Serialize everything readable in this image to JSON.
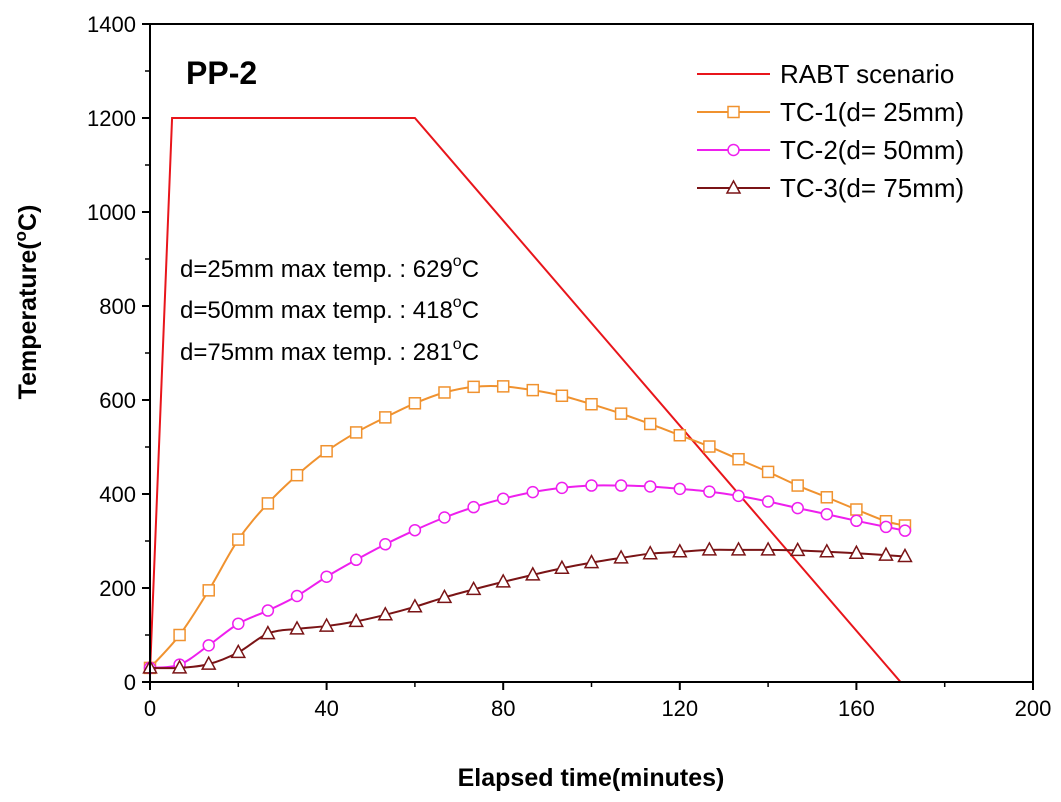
{
  "chart_data": {
    "type": "line",
    "panel_label": "PP-2",
    "xlabel": "Elapsed time(minutes)",
    "ylabel_main": "Temperature(",
    "ylabel_sup": "o",
    "ylabel_end": "C)",
    "xlim": [
      0,
      200
    ],
    "ylim": [
      0,
      1400
    ],
    "xticks": [
      0,
      40,
      80,
      120,
      160,
      200
    ],
    "yticks": [
      0,
      200,
      400,
      600,
      800,
      1000,
      1200,
      1400
    ],
    "grid": false,
    "legend_position": "top-right",
    "annotations": [
      {
        "main": "d=25mm max temp. : 629",
        "sup": "o",
        "end": "C"
      },
      {
        "main": "d=50mm max temp. : 418",
        "sup": "o",
        "end": "C"
      },
      {
        "main": "d=75mm max temp. : 281",
        "sup": "o",
        "end": "C"
      }
    ],
    "series": [
      {
        "name": "RABT scenario",
        "color": "#e8151b",
        "marker": "none",
        "x": [
          0,
          5,
          60,
          170
        ],
        "y": [
          20,
          1200,
          1200,
          0
        ]
      },
      {
        "name": "TC-1(d= 25mm)",
        "color": "#f0922f",
        "marker": "square",
        "x": [
          0,
          6.7,
          13.3,
          20,
          26.7,
          33.3,
          40,
          46.7,
          53.3,
          60,
          66.7,
          73.3,
          80,
          86.7,
          93.3,
          100,
          106.7,
          113.3,
          120,
          126.7,
          133.3,
          140,
          146.7,
          153.3,
          160,
          166.7,
          171
        ],
        "y": [
          30,
          100,
          195,
          303,
          380,
          440,
          491,
          531,
          563,
          593,
          616,
          628,
          629,
          621,
          609,
          591,
          571,
          549,
          525,
          501,
          474,
          447,
          418,
          393,
          367,
          342,
          333
        ]
      },
      {
        "name": "TC-2(d= 50mm)",
        "color": "#ee1fee",
        "marker": "circle",
        "x": [
          0,
          6.7,
          13.3,
          20,
          26.7,
          33.3,
          40,
          46.7,
          53.3,
          60,
          66.7,
          73.3,
          80,
          86.7,
          93.3,
          100,
          106.7,
          113.3,
          120,
          126.7,
          133.3,
          140,
          146.7,
          153.3,
          160,
          166.7,
          171
        ],
        "y": [
          30,
          37,
          78,
          124,
          152,
          183,
          224,
          260,
          293,
          323,
          350,
          372,
          390,
          404,
          413,
          418,
          418,
          416,
          411,
          405,
          396,
          384,
          370,
          357,
          343,
          330,
          322
        ]
      },
      {
        "name": "TC-3(d= 75mm)",
        "color": "#7a1416",
        "marker": "triangle",
        "x": [
          0,
          6.7,
          13.3,
          20,
          26.7,
          33.3,
          40,
          46.7,
          53.3,
          60,
          66.7,
          73.3,
          80,
          86.7,
          93.3,
          100,
          106.7,
          113.3,
          120,
          126.7,
          133.3,
          140,
          146.7,
          153.3,
          160,
          166.7,
          171
        ],
        "y": [
          30,
          30,
          38,
          63,
          103,
          113,
          119,
          129,
          143,
          160,
          180,
          197,
          213,
          228,
          242,
          254,
          264,
          273,
          277,
          281,
          281,
          281,
          280,
          277,
          274,
          270,
          267
        ]
      }
    ]
  }
}
